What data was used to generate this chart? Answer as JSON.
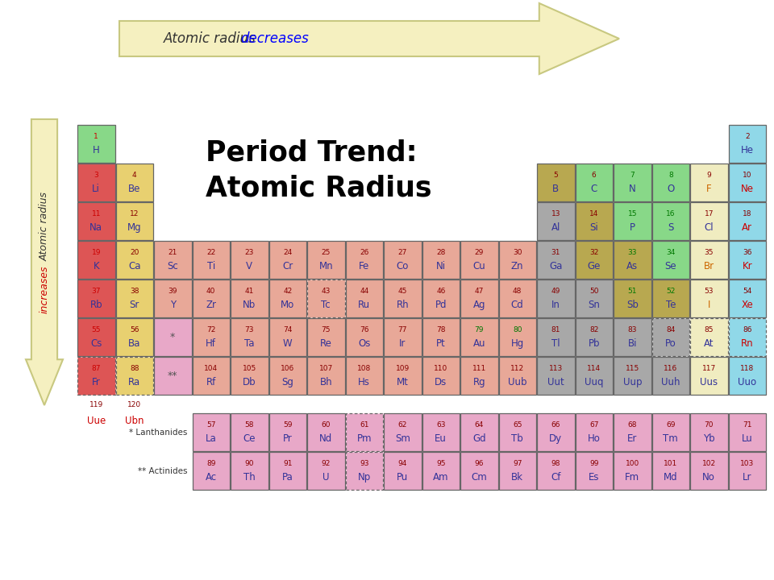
{
  "title_line1": "Period Trend:",
  "title_line2": "Atomic Radius",
  "background_color": "#ffffff",
  "arrow_fill": "#f5f0c0",
  "arrow_edge": "#c8c880",
  "colors": {
    "alkali_metal": "#dd5555",
    "alkaline_earth": "#e8d070",
    "transition_metal": "#e8a898",
    "post_transition": "#a8a8a8",
    "metalloid": "#b8a850",
    "nonmetal": "#88d888",
    "halogen": "#f0ecc0",
    "noble_gas": "#90d8e8",
    "lanthanide": "#e8a8c8",
    "actinide": "#e8a8c8",
    "hydrogen": "#88d888"
  },
  "elements": [
    {
      "num": 1,
      "sym": "H",
      "row": 1,
      "col": 1,
      "color": "hydrogen"
    },
    {
      "num": 2,
      "sym": "He",
      "row": 1,
      "col": 18,
      "color": "noble_gas"
    },
    {
      "num": 3,
      "sym": "Li",
      "row": 2,
      "col": 1,
      "color": "alkali_metal"
    },
    {
      "num": 4,
      "sym": "Be",
      "row": 2,
      "col": 2,
      "color": "alkaline_earth"
    },
    {
      "num": 5,
      "sym": "B",
      "row": 2,
      "col": 13,
      "color": "metalloid"
    },
    {
      "num": 6,
      "sym": "C",
      "row": 2,
      "col": 14,
      "color": "nonmetal"
    },
    {
      "num": 7,
      "sym": "N",
      "row": 2,
      "col": 15,
      "color": "nonmetal"
    },
    {
      "num": 8,
      "sym": "O",
      "row": 2,
      "col": 16,
      "color": "nonmetal"
    },
    {
      "num": 9,
      "sym": "F",
      "row": 2,
      "col": 17,
      "color": "halogen"
    },
    {
      "num": 10,
      "sym": "Ne",
      "row": 2,
      "col": 18,
      "color": "noble_gas"
    },
    {
      "num": 11,
      "sym": "Na",
      "row": 3,
      "col": 1,
      "color": "alkali_metal"
    },
    {
      "num": 12,
      "sym": "Mg",
      "row": 3,
      "col": 2,
      "color": "alkaline_earth"
    },
    {
      "num": 13,
      "sym": "Al",
      "row": 3,
      "col": 13,
      "color": "post_transition"
    },
    {
      "num": 14,
      "sym": "Si",
      "row": 3,
      "col": 14,
      "color": "metalloid"
    },
    {
      "num": 15,
      "sym": "P",
      "row": 3,
      "col": 15,
      "color": "nonmetal"
    },
    {
      "num": 16,
      "sym": "S",
      "row": 3,
      "col": 16,
      "color": "nonmetal"
    },
    {
      "num": 17,
      "sym": "Cl",
      "row": 3,
      "col": 17,
      "color": "halogen"
    },
    {
      "num": 18,
      "sym": "Ar",
      "row": 3,
      "col": 18,
      "color": "noble_gas"
    },
    {
      "num": 19,
      "sym": "K",
      "row": 4,
      "col": 1,
      "color": "alkali_metal"
    },
    {
      "num": 20,
      "sym": "Ca",
      "row": 4,
      "col": 2,
      "color": "alkaline_earth"
    },
    {
      "num": 21,
      "sym": "Sc",
      "row": 4,
      "col": 3,
      "color": "transition_metal"
    },
    {
      "num": 22,
      "sym": "Ti",
      "row": 4,
      "col": 4,
      "color": "transition_metal"
    },
    {
      "num": 23,
      "sym": "V",
      "row": 4,
      "col": 5,
      "color": "transition_metal"
    },
    {
      "num": 24,
      "sym": "Cr",
      "row": 4,
      "col": 6,
      "color": "transition_metal"
    },
    {
      "num": 25,
      "sym": "Mn",
      "row": 4,
      "col": 7,
      "color": "transition_metal"
    },
    {
      "num": 26,
      "sym": "Fe",
      "row": 4,
      "col": 8,
      "color": "transition_metal"
    },
    {
      "num": 27,
      "sym": "Co",
      "row": 4,
      "col": 9,
      "color": "transition_metal"
    },
    {
      "num": 28,
      "sym": "Ni",
      "row": 4,
      "col": 10,
      "color": "transition_metal"
    },
    {
      "num": 29,
      "sym": "Cu",
      "row": 4,
      "col": 11,
      "color": "transition_metal"
    },
    {
      "num": 30,
      "sym": "Zn",
      "row": 4,
      "col": 12,
      "color": "transition_metal"
    },
    {
      "num": 31,
      "sym": "Ga",
      "row": 4,
      "col": 13,
      "color": "post_transition"
    },
    {
      "num": 32,
      "sym": "Ge",
      "row": 4,
      "col": 14,
      "color": "metalloid"
    },
    {
      "num": 33,
      "sym": "As",
      "row": 4,
      "col": 15,
      "color": "metalloid"
    },
    {
      "num": 34,
      "sym": "Se",
      "row": 4,
      "col": 16,
      "color": "nonmetal"
    },
    {
      "num": 35,
      "sym": "Br",
      "row": 4,
      "col": 17,
      "color": "halogen"
    },
    {
      "num": 36,
      "sym": "Kr",
      "row": 4,
      "col": 18,
      "color": "noble_gas"
    },
    {
      "num": 37,
      "sym": "Rb",
      "row": 5,
      "col": 1,
      "color": "alkali_metal"
    },
    {
      "num": 38,
      "sym": "Sr",
      "row": 5,
      "col": 2,
      "color": "alkaline_earth"
    },
    {
      "num": 39,
      "sym": "Y",
      "row": 5,
      "col": 3,
      "color": "transition_metal"
    },
    {
      "num": 40,
      "sym": "Zr",
      "row": 5,
      "col": 4,
      "color": "transition_metal"
    },
    {
      "num": 41,
      "sym": "Nb",
      "row": 5,
      "col": 5,
      "color": "transition_metal"
    },
    {
      "num": 42,
      "sym": "Mo",
      "row": 5,
      "col": 6,
      "color": "transition_metal"
    },
    {
      "num": 43,
      "sym": "Tc",
      "row": 5,
      "col": 7,
      "color": "transition_metal",
      "dashed": true
    },
    {
      "num": 44,
      "sym": "Ru",
      "row": 5,
      "col": 8,
      "color": "transition_metal"
    },
    {
      "num": 45,
      "sym": "Rh",
      "row": 5,
      "col": 9,
      "color": "transition_metal"
    },
    {
      "num": 46,
      "sym": "Pd",
      "row": 5,
      "col": 10,
      "color": "transition_metal"
    },
    {
      "num": 47,
      "sym": "Ag",
      "row": 5,
      "col": 11,
      "color": "transition_metal"
    },
    {
      "num": 48,
      "sym": "Cd",
      "row": 5,
      "col": 12,
      "color": "transition_metal"
    },
    {
      "num": 49,
      "sym": "In",
      "row": 5,
      "col": 13,
      "color": "post_transition"
    },
    {
      "num": 50,
      "sym": "Sn",
      "row": 5,
      "col": 14,
      "color": "post_transition"
    },
    {
      "num": 51,
      "sym": "Sb",
      "row": 5,
      "col": 15,
      "color": "metalloid"
    },
    {
      "num": 52,
      "sym": "Te",
      "row": 5,
      "col": 16,
      "color": "metalloid"
    },
    {
      "num": 53,
      "sym": "I",
      "row": 5,
      "col": 17,
      "color": "halogen"
    },
    {
      "num": 54,
      "sym": "Xe",
      "row": 5,
      "col": 18,
      "color": "noble_gas"
    },
    {
      "num": 55,
      "sym": "Cs",
      "row": 6,
      "col": 1,
      "color": "alkali_metal"
    },
    {
      "num": 56,
      "sym": "Ba",
      "row": 6,
      "col": 2,
      "color": "alkaline_earth"
    },
    {
      "num": 72,
      "sym": "Hf",
      "row": 6,
      "col": 4,
      "color": "transition_metal"
    },
    {
      "num": 73,
      "sym": "Ta",
      "row": 6,
      "col": 5,
      "color": "transition_metal"
    },
    {
      "num": 74,
      "sym": "W",
      "row": 6,
      "col": 6,
      "color": "transition_metal"
    },
    {
      "num": 75,
      "sym": "Re",
      "row": 6,
      "col": 7,
      "color": "transition_metal"
    },
    {
      "num": 76,
      "sym": "Os",
      "row": 6,
      "col": 8,
      "color": "transition_metal"
    },
    {
      "num": 77,
      "sym": "Ir",
      "row": 6,
      "col": 9,
      "color": "transition_metal"
    },
    {
      "num": 78,
      "sym": "Pt",
      "row": 6,
      "col": 10,
      "color": "transition_metal"
    },
    {
      "num": 79,
      "sym": "Au",
      "row": 6,
      "col": 11,
      "color": "transition_metal"
    },
    {
      "num": 80,
      "sym": "Hg",
      "row": 6,
      "col": 12,
      "color": "transition_metal"
    },
    {
      "num": 81,
      "sym": "Tl",
      "row": 6,
      "col": 13,
      "color": "post_transition"
    },
    {
      "num": 82,
      "sym": "Pb",
      "row": 6,
      "col": 14,
      "color": "post_transition"
    },
    {
      "num": 83,
      "sym": "Bi",
      "row": 6,
      "col": 15,
      "color": "post_transition"
    },
    {
      "num": 84,
      "sym": "Po",
      "row": 6,
      "col": 16,
      "color": "post_transition",
      "dashed": true
    },
    {
      "num": 85,
      "sym": "At",
      "row": 6,
      "col": 17,
      "color": "halogen",
      "dashed": true
    },
    {
      "num": 86,
      "sym": "Rn",
      "row": 6,
      "col": 18,
      "color": "noble_gas",
      "dashed": true
    },
    {
      "num": 87,
      "sym": "Fr",
      "row": 7,
      "col": 1,
      "color": "alkali_metal",
      "dashed": true
    },
    {
      "num": 88,
      "sym": "Ra",
      "row": 7,
      "col": 2,
      "color": "alkaline_earth",
      "dashed": true
    },
    {
      "num": 104,
      "sym": "Rf",
      "row": 7,
      "col": 4,
      "color": "transition_metal"
    },
    {
      "num": 105,
      "sym": "Db",
      "row": 7,
      "col": 5,
      "color": "transition_metal"
    },
    {
      "num": 106,
      "sym": "Sg",
      "row": 7,
      "col": 6,
      "color": "transition_metal"
    },
    {
      "num": 107,
      "sym": "Bh",
      "row": 7,
      "col": 7,
      "color": "transition_metal"
    },
    {
      "num": 108,
      "sym": "Hs",
      "row": 7,
      "col": 8,
      "color": "transition_metal"
    },
    {
      "num": 109,
      "sym": "Mt",
      "row": 7,
      "col": 9,
      "color": "transition_metal"
    },
    {
      "num": 110,
      "sym": "Ds",
      "row": 7,
      "col": 10,
      "color": "transition_metal"
    },
    {
      "num": 111,
      "sym": "Rg",
      "row": 7,
      "col": 11,
      "color": "transition_metal"
    },
    {
      "num": 112,
      "sym": "Uub",
      "row": 7,
      "col": 12,
      "color": "transition_metal"
    },
    {
      "num": 113,
      "sym": "Uut",
      "row": 7,
      "col": 13,
      "color": "post_transition"
    },
    {
      "num": 114,
      "sym": "Uuq",
      "row": 7,
      "col": 14,
      "color": "post_transition"
    },
    {
      "num": 115,
      "sym": "Uup",
      "row": 7,
      "col": 15,
      "color": "post_transition"
    },
    {
      "num": 116,
      "sym": "Uuh",
      "row": 7,
      "col": 16,
      "color": "post_transition"
    },
    {
      "num": 117,
      "sym": "Uus",
      "row": 7,
      "col": 17,
      "color": "halogen"
    },
    {
      "num": 118,
      "sym": "Uuo",
      "row": 7,
      "col": 18,
      "color": "noble_gas"
    },
    {
      "num": 57,
      "sym": "La",
      "row": 9,
      "col": 4,
      "color": "lanthanide"
    },
    {
      "num": 58,
      "sym": "Ce",
      "row": 9,
      "col": 5,
      "color": "lanthanide"
    },
    {
      "num": 59,
      "sym": "Pr",
      "row": 9,
      "col": 6,
      "color": "lanthanide"
    },
    {
      "num": 60,
      "sym": "Nd",
      "row": 9,
      "col": 7,
      "color": "lanthanide"
    },
    {
      "num": 61,
      "sym": "Pm",
      "row": 9,
      "col": 8,
      "color": "lanthanide",
      "dashed": true
    },
    {
      "num": 62,
      "sym": "Sm",
      "row": 9,
      "col": 9,
      "color": "lanthanide"
    },
    {
      "num": 63,
      "sym": "Eu",
      "row": 9,
      "col": 10,
      "color": "lanthanide"
    },
    {
      "num": 64,
      "sym": "Gd",
      "row": 9,
      "col": 11,
      "color": "lanthanide"
    },
    {
      "num": 65,
      "sym": "Tb",
      "row": 9,
      "col": 12,
      "color": "lanthanide"
    },
    {
      "num": 66,
      "sym": "Dy",
      "row": 9,
      "col": 13,
      "color": "lanthanide"
    },
    {
      "num": 67,
      "sym": "Ho",
      "row": 9,
      "col": 14,
      "color": "lanthanide"
    },
    {
      "num": 68,
      "sym": "Er",
      "row": 9,
      "col": 15,
      "color": "lanthanide"
    },
    {
      "num": 69,
      "sym": "Tm",
      "row": 9,
      "col": 16,
      "color": "lanthanide"
    },
    {
      "num": 70,
      "sym": "Yb",
      "row": 9,
      "col": 17,
      "color": "lanthanide"
    },
    {
      "num": 71,
      "sym": "Lu",
      "row": 9,
      "col": 18,
      "color": "lanthanide"
    },
    {
      "num": 89,
      "sym": "Ac",
      "row": 10,
      "col": 4,
      "color": "actinide"
    },
    {
      "num": 90,
      "sym": "Th",
      "row": 10,
      "col": 5,
      "color": "actinide"
    },
    {
      "num": 91,
      "sym": "Pa",
      "row": 10,
      "col": 6,
      "color": "actinide"
    },
    {
      "num": 92,
      "sym": "U",
      "row": 10,
      "col": 7,
      "color": "actinide"
    },
    {
      "num": 93,
      "sym": "Np",
      "row": 10,
      "col": 8,
      "color": "actinide",
      "dashed": true
    },
    {
      "num": 94,
      "sym": "Pu",
      "row": 10,
      "col": 9,
      "color": "actinide"
    },
    {
      "num": 95,
      "sym": "Am",
      "row": 10,
      "col": 10,
      "color": "actinide"
    },
    {
      "num": 96,
      "sym": "Cm",
      "row": 10,
      "col": 11,
      "color": "actinide"
    },
    {
      "num": 97,
      "sym": "Bk",
      "row": 10,
      "col": 12,
      "color": "actinide"
    },
    {
      "num": 98,
      "sym": "Cf",
      "row": 10,
      "col": 13,
      "color": "actinide"
    },
    {
      "num": 99,
      "sym": "Es",
      "row": 10,
      "col": 14,
      "color": "actinide"
    },
    {
      "num": 100,
      "sym": "Fm",
      "row": 10,
      "col": 15,
      "color": "actinide"
    },
    {
      "num": 101,
      "sym": "Md",
      "row": 10,
      "col": 16,
      "color": "actinide"
    },
    {
      "num": 102,
      "sym": "No",
      "row": 10,
      "col": 17,
      "color": "actinide"
    },
    {
      "num": 103,
      "sym": "Lr",
      "row": 10,
      "col": 18,
      "color": "actinide"
    }
  ],
  "period6_placeholder": {
    "row": 6,
    "col": 3,
    "label": "*",
    "color": "lanthanide"
  },
  "period7_placeholder": {
    "row": 7,
    "col": 3,
    "label": "**",
    "color": "actinide"
  },
  "extra_elements": [
    {
      "num": 119,
      "sym": "Uue",
      "col": 1
    },
    {
      "num": 120,
      "sym": "Ubn",
      "col": 2
    }
  ],
  "num_color": "#880000",
  "sym_color_default": "#333399",
  "sym_color_red": "#cc0000",
  "sym_color_orange": "#cc6600",
  "sym_color_green": "#007700",
  "red_num_elements": [
    1,
    3,
    11,
    19,
    37,
    55,
    87
  ],
  "orange_sym_elements": [
    9,
    35,
    53
  ],
  "red_sym_elements": [
    54,
    86,
    10,
    36,
    18
  ],
  "green_num_elements": [
    7,
    8,
    15,
    16,
    33,
    34,
    51,
    52,
    79,
    80
  ]
}
